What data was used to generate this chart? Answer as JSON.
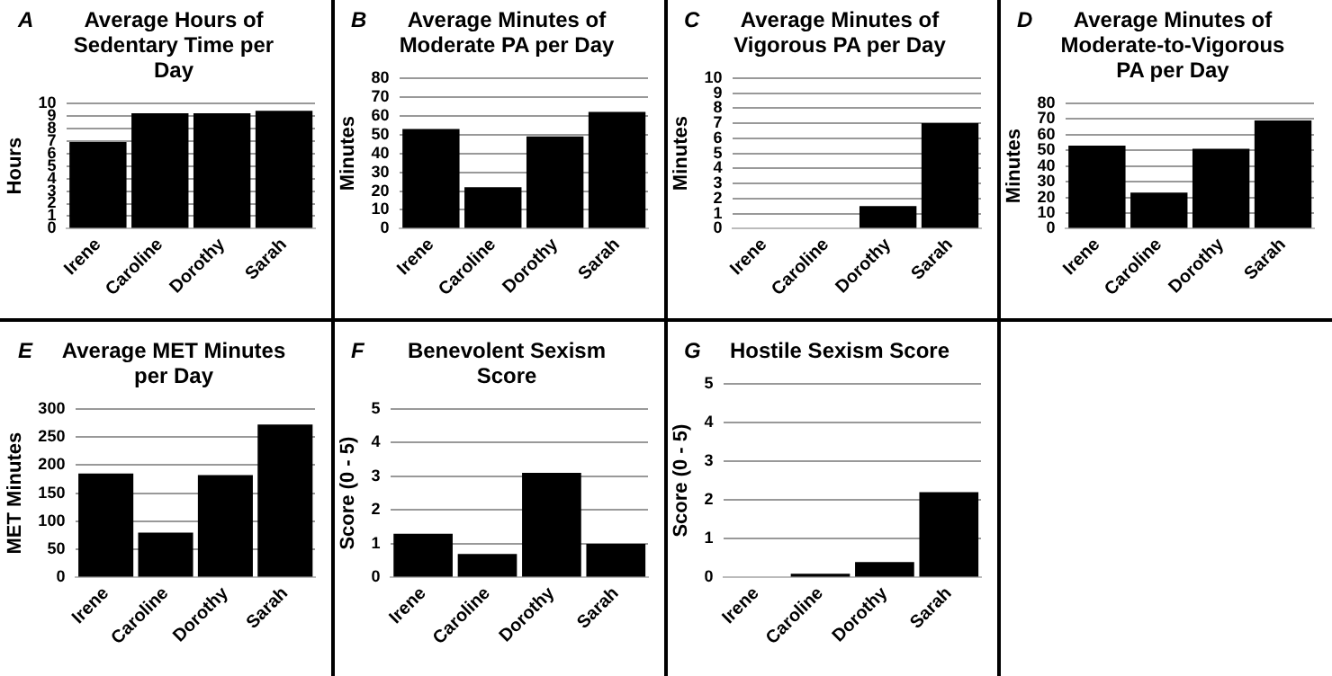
{
  "chart_data": [
    {
      "type": "bar",
      "title": "Average Hours of Sedentary Time per Day",
      "ylabel": "Hours",
      "annotations": [
        "A"
      ],
      "categories": [
        "Irene",
        "Caroline",
        "Dorothy",
        "Sarah"
      ],
      "values": [
        6.9,
        9.2,
        9.2,
        9.4
      ],
      "color": "#000000",
      "ylim": [
        0,
        10
      ],
      "yticks": [
        0,
        1,
        2,
        3,
        4,
        5,
        6,
        7,
        8,
        9,
        10
      ],
      "grid": "y"
    },
    {
      "type": "bar",
      "title": "Average Minutes of Moderate PA per Day",
      "ylabel": "Minutes",
      "annotations": [
        "B"
      ],
      "categories": [
        "Irene",
        "Caroline",
        "Dorothy",
        "Sarah"
      ],
      "values": [
        53,
        22,
        49,
        62
      ],
      "color": "#000000",
      "ylim": [
        0,
        80
      ],
      "yticks": [
        0,
        10,
        20,
        30,
        40,
        50,
        60,
        70,
        80
      ],
      "grid": "y"
    },
    {
      "type": "bar",
      "title": "Average Minutes of Vigorous PA per Day",
      "ylabel": "Minutes",
      "annotations": [
        "C"
      ],
      "categories": [
        "Irene",
        "Caroline",
        "Dorothy",
        "Sarah"
      ],
      "values": [
        0,
        0,
        1.5,
        7
      ],
      "color": "#000000",
      "ylim": [
        0,
        10
      ],
      "yticks": [
        0,
        1,
        2,
        3,
        4,
        5,
        6,
        7,
        8,
        9,
        10
      ],
      "grid": "y"
    },
    {
      "type": "bar",
      "title": "Average Minutes of Moderate-to-Vigorous PA per Day",
      "ylabel": "Minutes",
      "annotations": [
        "D"
      ],
      "categories": [
        "Irene",
        "Caroline",
        "Dorothy",
        "Sarah"
      ],
      "values": [
        53,
        23,
        51,
        69
      ],
      "color": "#000000",
      "ylim": [
        0,
        80
      ],
      "yticks": [
        0,
        10,
        20,
        30,
        40,
        50,
        60,
        70,
        80
      ],
      "grid": "y"
    },
    {
      "type": "bar",
      "title": "Average MET Minutes per Day",
      "ylabel": "MET Minutes",
      "annotations": [
        "E"
      ],
      "categories": [
        "Irene",
        "Caroline",
        "Dorothy",
        "Sarah"
      ],
      "values": [
        185,
        80,
        182,
        272
      ],
      "color": "#000000",
      "ylim": [
        0,
        300
      ],
      "yticks": [
        0,
        50,
        100,
        150,
        200,
        250,
        300
      ],
      "grid": "y"
    },
    {
      "type": "bar",
      "title": "Benevolent Sexism Score",
      "ylabel": "Score (0 - 5)",
      "annotations": [
        "F"
      ],
      "categories": [
        "Irene",
        "Caroline",
        "Dorothy",
        "Sarah"
      ],
      "values": [
        1.3,
        0.7,
        3.1,
        1.0
      ],
      "color": "#000000",
      "ylim": [
        0,
        5
      ],
      "yticks": [
        0,
        1,
        2,
        3,
        4,
        5
      ],
      "grid": "y"
    },
    {
      "type": "bar",
      "title": "Hostile Sexism  Score",
      "ylabel": "Score (0 - 5)",
      "annotations": [
        "G"
      ],
      "categories": [
        "Irene",
        "Caroline",
        "Dorothy",
        "Sarah"
      ],
      "values": [
        0,
        0.1,
        0.4,
        2.2
      ],
      "color": "#000000",
      "ylim": [
        0,
        5
      ],
      "yticks": [
        0,
        1,
        2,
        3,
        4,
        5
      ],
      "grid": "y"
    }
  ]
}
